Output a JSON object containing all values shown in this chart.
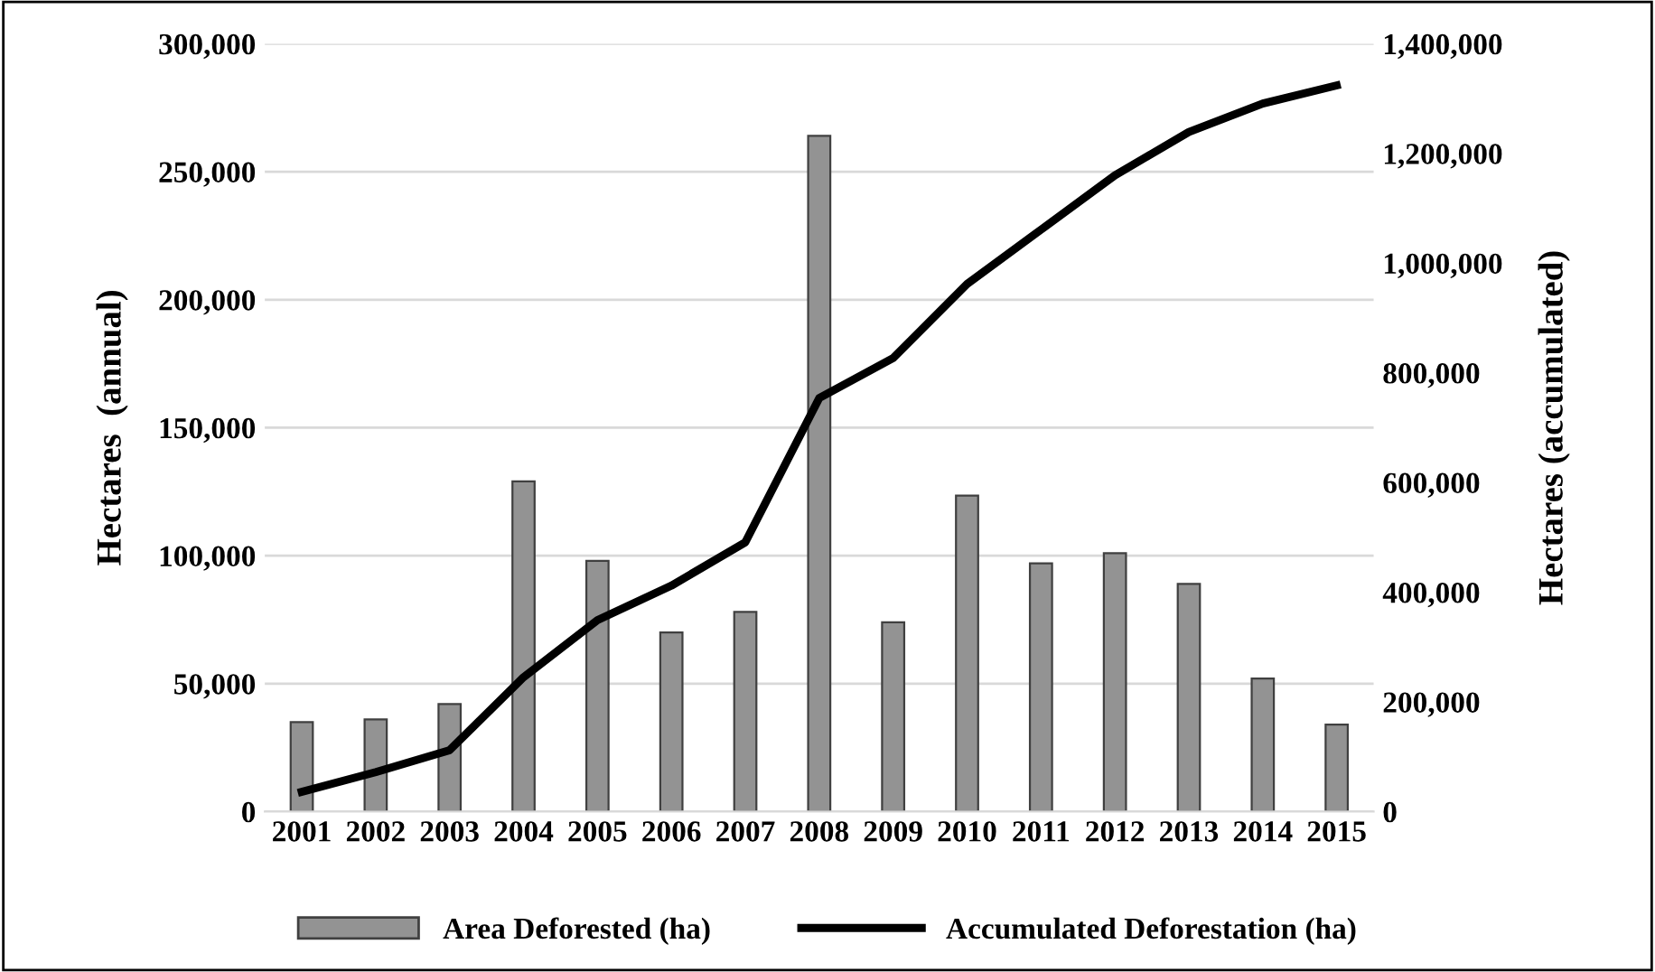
{
  "chart_data": {
    "type": "bar",
    "categories": [
      "2001",
      "2002",
      "2003",
      "2004",
      "2005",
      "2006",
      "2007",
      "2008",
      "2009",
      "2010",
      "2011",
      "2012",
      "2013",
      "2014",
      "2015"
    ],
    "series": [
      {
        "name": "Area Deforested (ha)",
        "color": "#939393",
        "values": [
          35000,
          36000,
          42000,
          129000,
          98000,
          70000,
          78000,
          264000,
          74000,
          123500,
          97000,
          101000,
          89000,
          52000,
          34000
        ]
      },
      {
        "name": "Accumulated Deforestation (ha)",
        "type": "line",
        "axis": "y2",
        "color": "#000000",
        "values": [
          36000,
          72000,
          112000,
          245000,
          349000,
          412000,
          491000,
          754000,
          827000,
          962000,
          1061000,
          1160000,
          1239000,
          1291000,
          1324000
        ]
      }
    ],
    "ylabel": "Hectares  (annual)",
    "y2label": "Hectares (accumulated)",
    "ylim": [
      0,
      300000
    ],
    "yticks": [
      {
        "value": 0,
        "label": "0"
      },
      {
        "value": 50000,
        "label": "50,000"
      },
      {
        "value": 100000,
        "label": "100,000"
      },
      {
        "value": 150000,
        "label": "150,000"
      },
      {
        "value": 200000,
        "label": "200,000"
      },
      {
        "value": 250000,
        "label": "250,000"
      },
      {
        "value": 300000,
        "label": "300,000"
      }
    ],
    "y2lim": [
      0,
      1400000
    ],
    "y2ticks": [
      {
        "value": 0,
        "label": "0"
      },
      {
        "value": 200000,
        "label": "200,000"
      },
      {
        "value": 400000,
        "label": "400,000"
      },
      {
        "value": 600000,
        "label": "600,000"
      },
      {
        "value": 800000,
        "label": "800,000"
      },
      {
        "value": 1000000,
        "label": "1,000,000"
      },
      {
        "value": 1200000,
        "label": "1,200,000"
      },
      {
        "value": 1400000,
        "label": "1,400,000"
      }
    ],
    "grid": "y",
    "legend": "bottom",
    "marker": "none",
    "line_style": "solid"
  }
}
